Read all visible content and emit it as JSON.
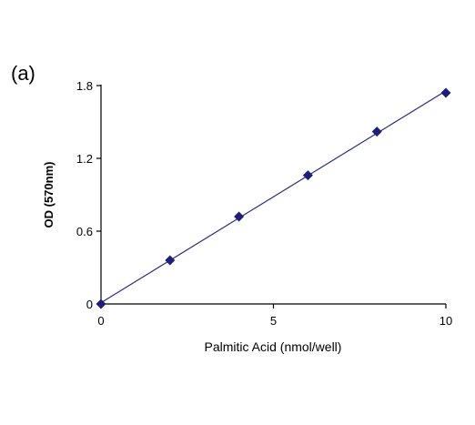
{
  "panel_label": "(a)",
  "chart_data": {
    "type": "scatter",
    "title": "",
    "xlabel": "Palmitic Acid (nmol/well)",
    "ylabel": "OD (570nm)",
    "xlim": [
      0,
      10
    ],
    "ylim": [
      0,
      1.8
    ],
    "x_ticks": [
      0,
      5,
      10
    ],
    "x_tick_labels": [
      "0",
      "5",
      "10"
    ],
    "y_ticks": [
      0,
      0.6,
      1.2,
      1.8
    ],
    "y_tick_labels": [
      "0",
      "0.6",
      "1.2",
      "1.8"
    ],
    "grid": false,
    "legend": "none",
    "marker": "diamond",
    "trendline": "linear",
    "series": [
      {
        "color": "#1f1f7a",
        "x": [
          0,
          2,
          4,
          6,
          8,
          10
        ],
        "y": [
          0.0,
          0.36,
          0.72,
          1.06,
          1.42,
          1.74
        ]
      }
    ]
  }
}
